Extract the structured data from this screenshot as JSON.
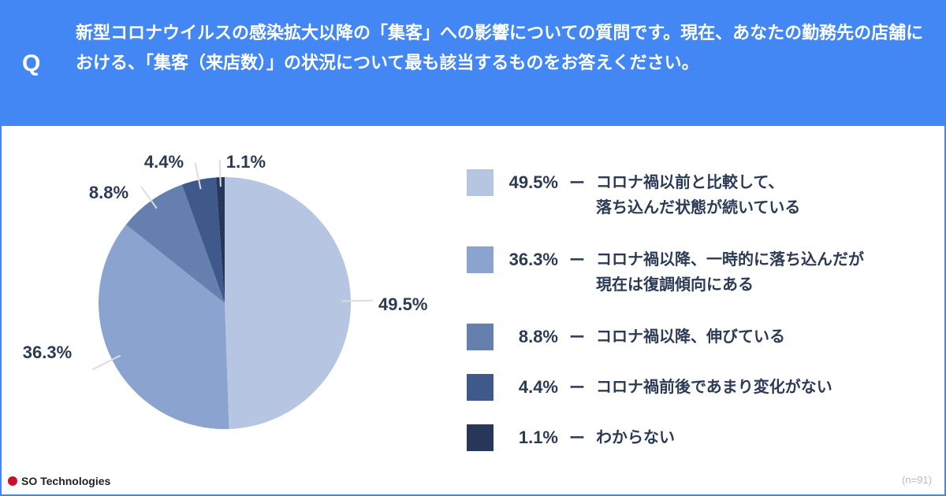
{
  "header": {
    "q_mark": "Q",
    "question": "新型コロナウイルスの感染拡大以降の「集客」への影響についての質問です。現在、あなたの勤務先の店舗における、「集客（来店数）」の状況について最も該当するものをお答えください。"
  },
  "chart_data": {
    "type": "pie",
    "title": "新型コロナウイルスの感染拡大以降の「集客」への影響",
    "slices": [
      {
        "label": "コロナ禍以前と比較して、落ち込んだ状態が続いている",
        "value": 49.5,
        "display": "49.5%",
        "color": "#b6c5e2"
      },
      {
        "label": "コロナ禍以降、一時的に落ち込んだが現在は復調傾向にある",
        "value": 36.3,
        "display": "36.3%",
        "color": "#8aa3cf"
      },
      {
        "label": "コロナ禍以降、伸びている",
        "value": 8.8,
        "display": "8.8%",
        "color": "#6580ae"
      },
      {
        "label": "コロナ禍前後であまり変化がない",
        "value": 4.4,
        "display": "4.4%",
        "color": "#3f5a8a"
      },
      {
        "label": "わからない",
        "value": 1.1,
        "display": "1.1%",
        "color": "#26375a"
      }
    ],
    "legend_position": "right"
  },
  "legend_dash": "ー",
  "footer": {
    "brand": "SO Technologies",
    "n": "(n=91)"
  }
}
